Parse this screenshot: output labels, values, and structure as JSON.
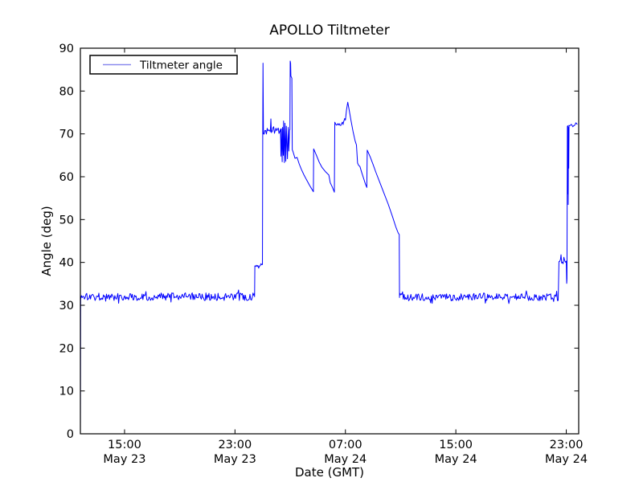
{
  "figure": {
    "background": "#ffffff"
  },
  "chart_data": {
    "type": "line",
    "title": "APOLLO Tiltmeter",
    "xlabel": "Date (GMT)",
    "ylabel": "Angle (deg)",
    "grid": false,
    "legend": {
      "label": "Tiltmeter angle",
      "location": "upper left"
    },
    "colors": {
      "line": "#0000ff",
      "legend_sample": "#8a8aee",
      "axis": "#000000",
      "text": "#000000"
    },
    "ylim": [
      0,
      90
    ],
    "yticks": [
      0,
      10,
      20,
      30,
      40,
      50,
      60,
      70,
      80,
      90
    ],
    "x_axis_note": "t = hours measured from May 23 00:00 GMT",
    "xlim_hours": [
      11.8,
      47.9
    ],
    "xticks": [
      {
        "hour": 15,
        "time": "15:00",
        "date": "May 23"
      },
      {
        "hour": 23,
        "time": "23:00",
        "date": "May 23"
      },
      {
        "hour": 31,
        "time": "07:00",
        "date": "May 24"
      },
      {
        "hour": 39,
        "time": "15:00",
        "date": "May 24"
      },
      {
        "hour": 47,
        "time": "23:00",
        "date": "May 24"
      }
    ],
    "series": [
      {
        "name": "Tiltmeter angle",
        "segments": [
          {
            "type": "path",
            "points": [
              [
                11.8,
                0.0
              ],
              [
                11.82,
                31.5
              ]
            ]
          },
          {
            "type": "noisy",
            "t0": 11.82,
            "t1": 24.42,
            "base": 32.0,
            "amp": 0.9
          },
          {
            "type": "path",
            "points": [
              [
                24.42,
                32.0
              ],
              [
                24.44,
                39.2
              ]
            ]
          },
          {
            "type": "noisy",
            "t0": 24.44,
            "t1": 24.99,
            "base": 39.4,
            "amp": 0.45
          },
          {
            "type": "path",
            "points": [
              [
                24.99,
                39.5
              ],
              [
                25.01,
                70.0
              ],
              [
                25.03,
                86.5
              ],
              [
                25.06,
                71.0
              ]
            ]
          },
          {
            "type": "noisy",
            "t0": 25.06,
            "t1": 25.55,
            "base": 70.6,
            "amp": 0.8
          },
          {
            "type": "path",
            "points": [
              [
                25.56,
                70.5
              ],
              [
                25.6,
                73.5
              ],
              [
                25.64,
                70.3
              ]
            ]
          },
          {
            "type": "noisy",
            "t0": 25.64,
            "t1": 26.3,
            "base": 70.9,
            "amp": 0.9
          },
          {
            "type": "path",
            "points": [
              [
                26.3,
                71.0
              ],
              [
                26.33,
                64.8
              ],
              [
                26.36,
                71.2
              ],
              [
                26.42,
                63.5
              ],
              [
                26.45,
                71.5
              ],
              [
                26.5,
                65.0
              ],
              [
                26.52,
                73.0
              ],
              [
                26.58,
                63.3
              ],
              [
                26.62,
                72.5
              ],
              [
                26.68,
                63.6
              ],
              [
                26.72,
                71.8
              ],
              [
                26.8,
                64.2
              ],
              [
                26.86,
                71.5
              ],
              [
                26.9,
                66.0
              ],
              [
                26.96,
                71.0
              ]
            ]
          },
          {
            "type": "path",
            "points": [
              [
                26.98,
                71.0
              ],
              [
                27.0,
                87.0
              ],
              [
                27.03,
                86.5
              ],
              [
                27.05,
                83.5
              ],
              [
                27.12,
                83.0
              ],
              [
                27.15,
                66.3
              ]
            ]
          },
          {
            "type": "path",
            "points": [
              [
                27.2,
                65.9
              ],
              [
                27.35,
                64.3
              ],
              [
                27.5,
                64.5
              ],
              [
                27.65,
                63.0
              ],
              [
                27.8,
                61.8
              ],
              [
                28.0,
                60.4
              ],
              [
                28.2,
                59.2
              ],
              [
                28.4,
                58.0
              ],
              [
                28.55,
                57.2
              ],
              [
                28.68,
                56.5
              ]
            ]
          },
          {
            "type": "path",
            "points": [
              [
                28.7,
                66.5
              ],
              [
                28.9,
                65.0
              ],
              [
                29.1,
                63.4
              ],
              [
                29.3,
                62.2
              ],
              [
                29.55,
                61.2
              ],
              [
                29.8,
                60.4
              ],
              [
                29.9,
                58.6
              ],
              [
                30.05,
                57.6
              ],
              [
                30.2,
                56.4
              ]
            ]
          },
          {
            "type": "path",
            "points": [
              [
                30.23,
                72.2
              ]
            ]
          },
          {
            "type": "noisy",
            "t0": 30.23,
            "t1": 30.85,
            "base": 72.4,
            "amp": 0.5
          },
          {
            "type": "path",
            "points": [
              [
                30.85,
                72.6
              ],
              [
                30.95,
                73.6
              ],
              [
                31.0,
                73.2
              ],
              [
                31.08,
                75.6
              ],
              [
                31.17,
                77.4
              ],
              [
                31.26,
                75.8
              ],
              [
                31.4,
                73.2
              ],
              [
                31.55,
                70.6
              ],
              [
                31.7,
                68.4
              ],
              [
                31.8,
                67.4
              ],
              [
                31.88,
                63.2
              ],
              [
                31.95,
                62.7
              ],
              [
                32.05,
                62.4
              ],
              [
                32.18,
                61.0
              ],
              [
                32.32,
                59.6
              ],
              [
                32.45,
                58.3
              ],
              [
                32.55,
                57.5
              ]
            ]
          },
          {
            "type": "path",
            "points": [
              [
                32.58,
                66.2
              ],
              [
                32.8,
                64.6
              ],
              [
                33.0,
                62.9
              ],
              [
                33.2,
                61.1
              ],
              [
                33.5,
                58.6
              ],
              [
                33.8,
                56.1
              ],
              [
                34.1,
                53.6
              ],
              [
                34.4,
                50.8
              ],
              [
                34.65,
                48.3
              ],
              [
                34.82,
                46.9
              ],
              [
                34.9,
                46.5
              ]
            ]
          },
          {
            "type": "path",
            "points": [
              [
                34.92,
                31.8
              ]
            ]
          },
          {
            "type": "noisy",
            "t0": 34.92,
            "t1": 46.45,
            "base": 31.9,
            "amp": 0.85
          },
          {
            "type": "path",
            "points": [
              [
                46.47,
                40.2
              ]
            ]
          },
          {
            "type": "noisy",
            "t0": 46.47,
            "t1": 46.6,
            "base": 40.3,
            "amp": 0.4
          },
          {
            "type": "path",
            "points": [
              [
                46.62,
                41.8
              ],
              [
                46.66,
                40.1
              ]
            ]
          },
          {
            "type": "noisy",
            "t0": 46.66,
            "t1": 46.97,
            "base": 40.4,
            "amp": 0.45
          },
          {
            "type": "path",
            "points": [
              [
                47.0,
                40.3
              ],
              [
                47.03,
                35.1
              ],
              [
                47.05,
                36.2
              ],
              [
                47.08,
                71.8
              ],
              [
                47.1,
                56.0
              ],
              [
                47.12,
                71.9
              ],
              [
                47.14,
                53.5
              ],
              [
                47.16,
                71.5
              ],
              [
                47.18,
                62.0
              ],
              [
                47.2,
                72.0
              ]
            ]
          },
          {
            "type": "noisy",
            "t0": 47.2,
            "t1": 47.8,
            "base": 72.1,
            "amp": 0.5
          },
          {
            "type": "path",
            "points": [
              [
                47.8,
                72.2
              ]
            ]
          }
        ]
      }
    ]
  }
}
